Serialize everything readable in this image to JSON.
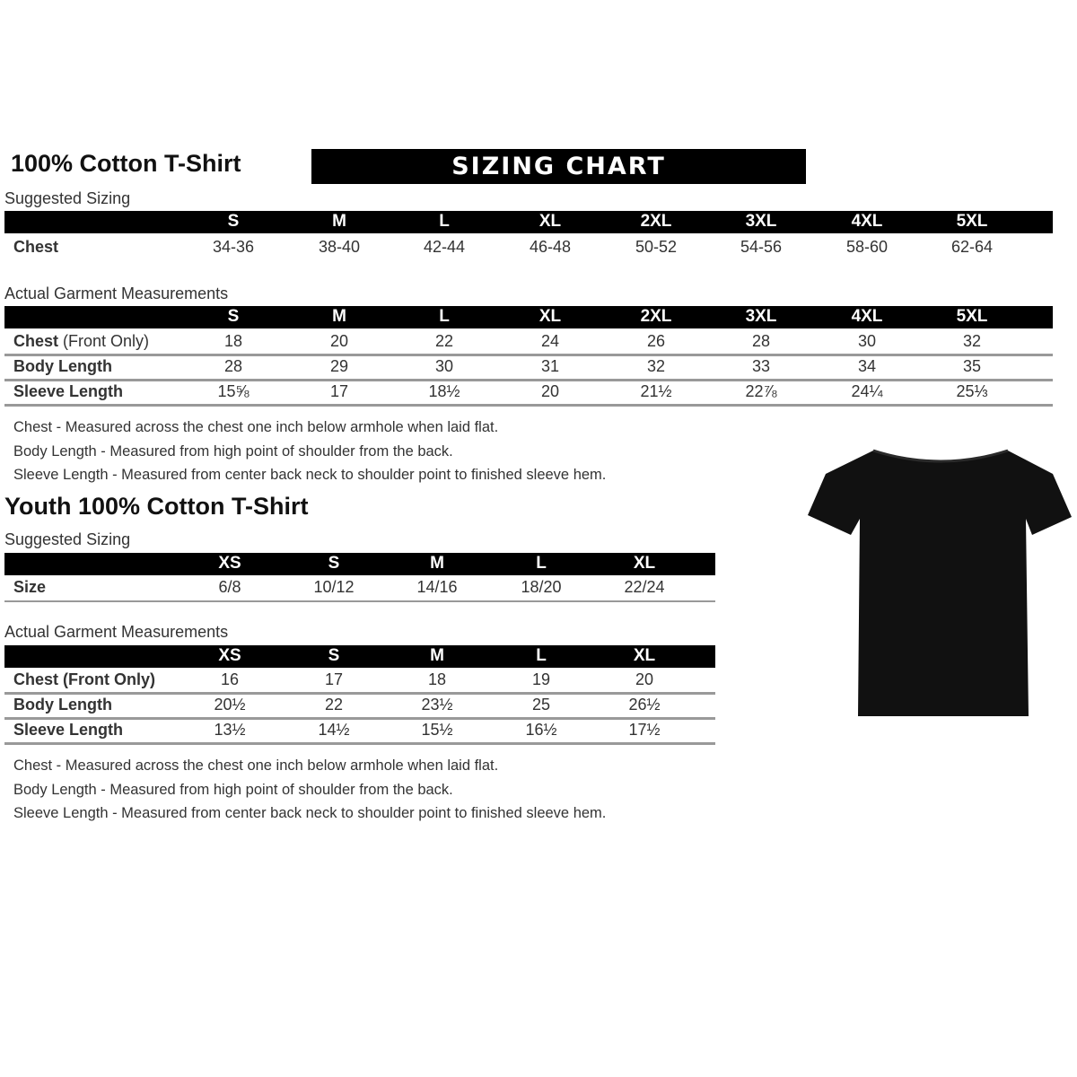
{
  "adult": {
    "title": "100% Cotton T-Shirt",
    "banner": "SIZING CHART",
    "suggested_label": "Suggested Sizing",
    "sizes": [
      "S",
      "M",
      "L",
      "XL",
      "2XL",
      "3XL",
      "4XL",
      "5XL"
    ],
    "suggested_row": {
      "label": "Chest",
      "values": [
        "34-36",
        "38-40",
        "42-44",
        "46-48",
        "50-52",
        "54-56",
        "58-60",
        "62-64"
      ]
    },
    "actual_label": "Actual Garment Measurements",
    "actual_rows": [
      {
        "label": "Chest",
        "label_extra": " (Front Only)",
        "values": [
          "18",
          "20",
          "22",
          "24",
          "26",
          "28",
          "30",
          "32"
        ]
      },
      {
        "label": "Body Length",
        "label_extra": "",
        "values": [
          "28",
          "29",
          "30",
          "31",
          "32",
          "33",
          "34",
          "35"
        ]
      },
      {
        "label": "Sleeve Length",
        "label_extra": "",
        "values": [
          "15⅝",
          "17",
          "18½",
          "20",
          "21½",
          "22⅞",
          "24¼",
          "25⅓"
        ]
      }
    ],
    "notes": [
      "Chest - Measured across the chest one inch below armhole when laid flat.",
      "Body Length - Measured from high point of shoulder from the back.",
      "Sleeve Length - Measured from center back neck to shoulder point to finished sleeve hem."
    ]
  },
  "youth": {
    "title": "Youth 100% Cotton T-Shirt",
    "suggested_label": "Suggested Sizing",
    "sizes": [
      "XS",
      "S",
      "M",
      "L",
      "XL"
    ],
    "suggested_row": {
      "label": "Size",
      "values": [
        "6/8",
        "10/12",
        "14/16",
        "18/20",
        "22/24"
      ]
    },
    "actual_label": "Actual Garment Measurements",
    "actual_rows": [
      {
        "label": "Chest (Front Only)",
        "values": [
          "16",
          "17",
          "18",
          "19",
          "20"
        ]
      },
      {
        "label": "Body Length",
        "values": [
          "20½",
          "22",
          "23½",
          "25",
          "26½"
        ]
      },
      {
        "label": "Sleeve Length",
        "values": [
          "13½",
          "14½",
          "15½",
          "16½",
          "17½"
        ]
      }
    ],
    "notes": [
      "Chest - Measured across the chest one inch below armhole when laid flat.",
      "Body Length - Measured from high point of shoulder from the back.",
      "Sleeve Length - Measured from center back neck to shoulder point to finished sleeve hem."
    ]
  },
  "image": {
    "icon": "tshirt-icon",
    "color": "#111111"
  }
}
